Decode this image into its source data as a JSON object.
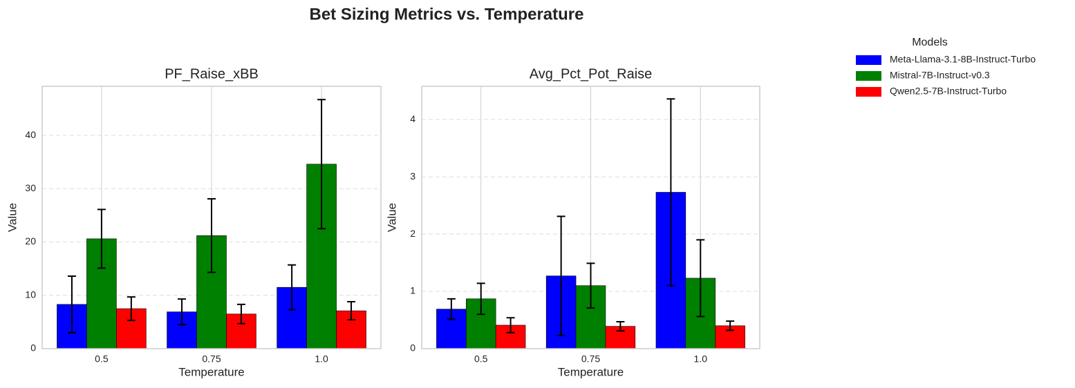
{
  "title": "Bet Sizing Metrics vs. Temperature",
  "legend_title": "Models",
  "chart_data": [
    {
      "type": "bar",
      "title": "PF_Raise_xBB",
      "xlabel": "Temperature",
      "ylabel": "Value",
      "categories": [
        "0.5",
        "0.75",
        "1.0"
      ],
      "series": [
        {
          "name": "Meta-Llama-3.1-8B-Instruct-Turbo",
          "color": "#0000ff",
          "values": [
            8.3,
            6.9,
            11.5
          ],
          "errors": [
            5.3,
            2.4,
            4.2
          ]
        },
        {
          "name": "Mistral-7B-Instruct-v0.3",
          "color": "#008000",
          "values": [
            20.6,
            21.2,
            34.6
          ],
          "errors": [
            5.5,
            6.9,
            12.1
          ]
        },
        {
          "name": "Qwen2.5-7B-Instruct-Turbo",
          "color": "#ff0000",
          "values": [
            7.5,
            6.5,
            7.1
          ],
          "errors": [
            2.2,
            1.8,
            1.7
          ]
        }
      ],
      "ylim": [
        0,
        49.2
      ],
      "yticks": [
        0,
        10,
        20,
        30,
        40
      ],
      "grid": true
    },
    {
      "type": "bar",
      "title": "Avg_Pct_Pot_Raise",
      "xlabel": "Temperature",
      "ylabel": "Value",
      "categories": [
        "0.5",
        "0.75",
        "1.0"
      ],
      "series": [
        {
          "name": "Meta-Llama-3.1-8B-Instruct-Turbo",
          "color": "#0000ff",
          "values": [
            0.69,
            1.27,
            2.73
          ],
          "errors": [
            0.18,
            1.04,
            1.63
          ]
        },
        {
          "name": "Mistral-7B-Instruct-v0.3",
          "color": "#008000",
          "values": [
            0.87,
            1.1,
            1.23
          ],
          "errors": [
            0.27,
            0.39,
            0.67
          ]
        },
        {
          "name": "Qwen2.5-7B-Instruct-Turbo",
          "color": "#ff0000",
          "values": [
            0.41,
            0.39,
            0.4
          ],
          "errors": [
            0.13,
            0.08,
            0.08
          ]
        }
      ],
      "ylim": [
        0,
        4.58
      ],
      "yticks": [
        0,
        1,
        2,
        3,
        4
      ],
      "grid": true
    }
  ]
}
